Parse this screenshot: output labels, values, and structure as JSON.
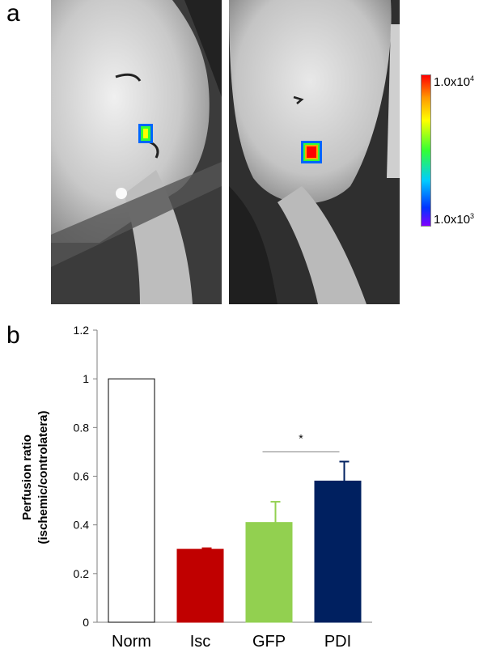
{
  "panels": {
    "a": "a",
    "b": "b"
  },
  "colorbar": {
    "top_base": "1.0x10",
    "top_exp": "4",
    "bottom_base": "1.0x10",
    "bottom_exp": "3",
    "colors": [
      "#ff0000",
      "#ff9900",
      "#ffff00",
      "#33ff33",
      "#00ccff",
      "#0033ff",
      "#8000ff"
    ]
  },
  "chart_data": {
    "type": "bar",
    "categories": [
      "Norm",
      "Isc",
      "GFP",
      "PDI"
    ],
    "values": [
      1.0,
      0.3,
      0.41,
      0.58
    ],
    "errors": [
      0,
      0.004,
      0.085,
      0.08
    ],
    "colors": [
      "#ffffff",
      "#c00000",
      "#92d050",
      "#002060"
    ],
    "ylabel_line1": "Perfusion ratio",
    "ylabel_line2": "(ischemic/controlatera)",
    "ylim": [
      0,
      1.2
    ],
    "yticks": [
      "0",
      "0.2",
      "0.4",
      "0.6",
      "0.8",
      "1",
      "1.2"
    ],
    "annotation": "*",
    "significance_between": [
      "GFP",
      "PDI"
    ]
  }
}
